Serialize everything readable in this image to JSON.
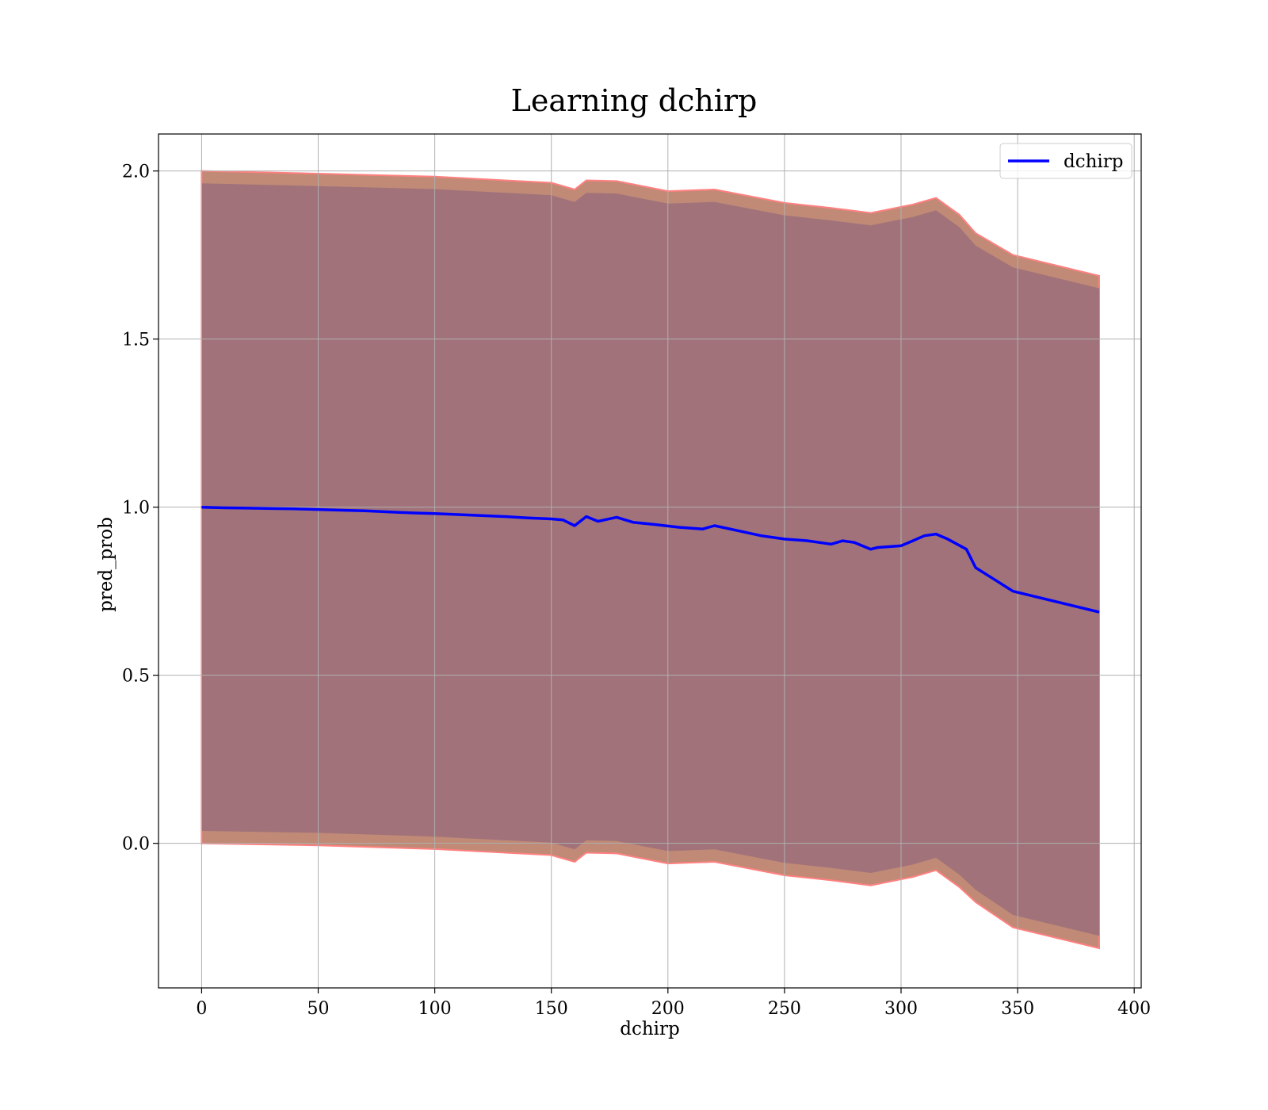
{
  "chart_data": {
    "type": "line",
    "title": "Learning dchirp",
    "xlabel": "dchirp",
    "ylabel": "pred_prob",
    "xlim": [
      -18.5,
      403
    ],
    "ylim": [
      -0.43,
      2.11
    ],
    "xticks": [
      0,
      50,
      100,
      150,
      200,
      250,
      300,
      350,
      400
    ],
    "yticks": [
      0.0,
      0.5,
      1.0,
      1.5,
      2.0
    ],
    "xtick_labels": [
      "0",
      "50",
      "100",
      "150",
      "200",
      "250",
      "300",
      "350",
      "400"
    ],
    "ytick_labels": [
      "0.0",
      "0.5",
      "1.0",
      "1.5",
      "2.0"
    ],
    "grid": true,
    "legend_position": "top-right",
    "colors": {
      "line": "#0000ff",
      "outer_band": "#c08a76",
      "inner_band": "#a1727a",
      "band_edge": "#ff8080"
    },
    "series": [
      {
        "name": "dchirp",
        "x": [
          0,
          10,
          20,
          30,
          40,
          50,
          60,
          70,
          80,
          90,
          100,
          110,
          120,
          130,
          140,
          150,
          155,
          160,
          165,
          170,
          178,
          185,
          195,
          205,
          215,
          220,
          230,
          240,
          250,
          260,
          270,
          275,
          280,
          287,
          290,
          300,
          305,
          310,
          315,
          320,
          328,
          332,
          340,
          348,
          385
        ],
        "y": [
          1.0,
          0.998,
          0.997,
          0.996,
          0.995,
          0.993,
          0.991,
          0.989,
          0.986,
          0.983,
          0.981,
          0.978,
          0.975,
          0.972,
          0.968,
          0.965,
          0.962,
          0.945,
          0.972,
          0.958,
          0.97,
          0.955,
          0.948,
          0.94,
          0.935,
          0.945,
          0.93,
          0.915,
          0.905,
          0.9,
          0.89,
          0.9,
          0.895,
          0.875,
          0.88,
          0.885,
          0.9,
          0.915,
          0.92,
          0.905,
          0.875,
          0.82,
          0.785,
          0.75,
          0.688
        ]
      }
    ],
    "bands": [
      {
        "role": "outer",
        "x": [
          0,
          50,
          100,
          150,
          160,
          165,
          178,
          200,
          220,
          250,
          270,
          287,
          305,
          315,
          325,
          332,
          348,
          385
        ],
        "upper": [
          2.0,
          1.992,
          1.983,
          1.965,
          1.945,
          1.972,
          1.97,
          1.94,
          1.945,
          1.905,
          1.89,
          1.875,
          1.9,
          1.92,
          1.87,
          1.815,
          1.75,
          1.688
        ],
        "lower": [
          0.0,
          -0.006,
          -0.017,
          -0.035,
          -0.055,
          -0.028,
          -0.03,
          -0.06,
          -0.055,
          -0.095,
          -0.11,
          -0.125,
          -0.1,
          -0.08,
          -0.13,
          -0.175,
          -0.25,
          -0.312
        ]
      },
      {
        "role": "inner",
        "x": [
          0,
          50,
          100,
          150,
          160,
          165,
          178,
          200,
          220,
          250,
          270,
          287,
          305,
          315,
          325,
          332,
          348,
          385
        ],
        "upper": [
          1.963,
          1.955,
          1.946,
          1.928,
          1.908,
          1.935,
          1.933,
          1.903,
          1.908,
          1.868,
          1.853,
          1.838,
          1.863,
          1.883,
          1.833,
          1.778,
          1.713,
          1.651
        ],
        "lower": [
          0.037,
          0.031,
          0.02,
          0.002,
          -0.018,
          0.009,
          0.007,
          -0.023,
          -0.018,
          -0.058,
          -0.073,
          -0.088,
          -0.063,
          -0.043,
          -0.093,
          -0.138,
          -0.213,
          -0.275
        ]
      }
    ]
  }
}
